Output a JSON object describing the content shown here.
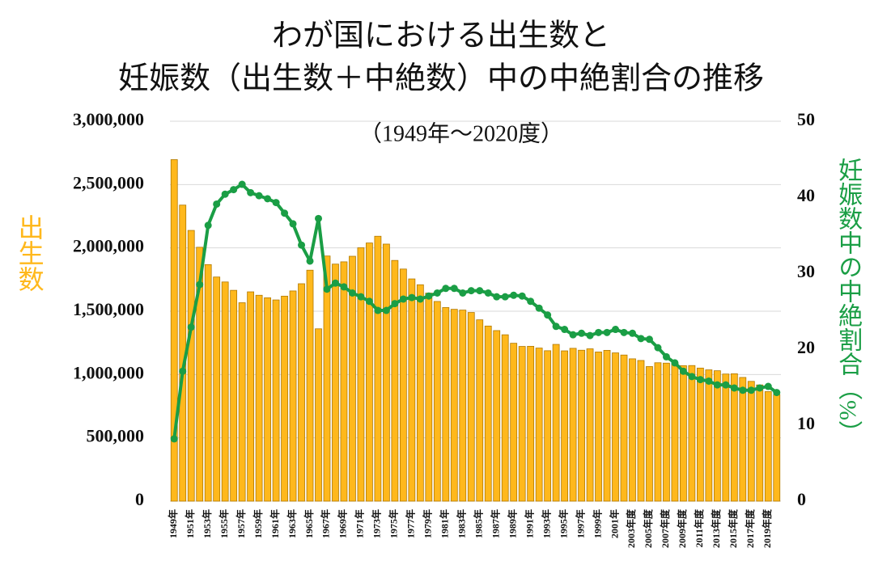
{
  "chart_data": {
    "type": "bar_line",
    "title": [
      "わが国における出生数と",
      "妊娠数（出生数＋中絶数）中の中絶割合の推移"
    ],
    "subtitle": "（1949年～2020度）",
    "y_label": "出生数",
    "y2_label": "妊娠数中の中絶割合（%）",
    "categories": [
      "1949年",
      null,
      "1951年",
      null,
      "1953年",
      null,
      "1955年",
      null,
      "1957年",
      null,
      "1959年",
      null,
      "1961年",
      null,
      "1963年",
      null,
      "1965年",
      null,
      "1967年",
      null,
      "1969年",
      null,
      "1971年",
      null,
      "1973年",
      null,
      "1975年",
      null,
      "1977年",
      null,
      "1979年",
      null,
      "1981年",
      null,
      "1983年",
      null,
      "1985年",
      null,
      "1987年",
      null,
      "1989年",
      null,
      "1991年",
      null,
      "1993年",
      null,
      "1995年",
      null,
      "1997年",
      null,
      "1999年",
      null,
      "2001年",
      null,
      "2003年度",
      null,
      "2005年度",
      null,
      "2007年度",
      null,
      "2009年度",
      null,
      "2011年度",
      null,
      "2013年度",
      null,
      "2015年度",
      null,
      "2017年度",
      null,
      "2019年度",
      null
    ],
    "series": [
      {
        "name": "出生数",
        "color": "#ffb81c",
        "values": [
          2697000,
          2338000,
          2138000,
          2005000,
          1868000,
          1770000,
          1731000,
          1665000,
          1567000,
          1653000,
          1626000,
          1606000,
          1589000,
          1619000,
          1660000,
          1717000,
          1824000,
          1361000,
          1936000,
          1872000,
          1890000,
          1934000,
          2001000,
          2039000,
          2092000,
          2030000,
          1901000,
          1833000,
          1755000,
          1709000,
          1643000,
          1577000,
          1529000,
          1515000,
          1509000,
          1490000,
          1432000,
          1383000,
          1347000,
          1314000,
          1247000,
          1222000,
          1223000,
          1209000,
          1188000,
          1238000,
          1187000,
          1207000,
          1192000,
          1203000,
          1178000,
          1191000,
          1171000,
          1154000,
          1124000,
          1111000,
          1063000,
          1093000,
          1090000,
          1091000,
          1070000,
          1071000,
          1051000,
          1037000,
          1030000,
          1004000,
          1006000,
          977000,
          946000,
          918000,
          865000,
          841000
        ]
      },
      {
        "name": "中絶割合",
        "color": "#1a9e45",
        "axis": "y2",
        "values": [
          8.2,
          17.1,
          22.9,
          28.5,
          36.3,
          39.1,
          40.4,
          41.0,
          41.7,
          40.6,
          40.2,
          39.8,
          39.3,
          37.9,
          36.5,
          33.7,
          31.6,
          37.2,
          27.9,
          28.7,
          28.2,
          27.4,
          26.9,
          26.3,
          25.1,
          25.1,
          26.0,
          26.6,
          26.8,
          26.6,
          27.0,
          27.4,
          28.0,
          28.0,
          27.4,
          27.7,
          27.7,
          27.4,
          26.9,
          26.9,
          27.1,
          27.0,
          26.3,
          25.4,
          24.5,
          23.0,
          22.6,
          21.9,
          22.1,
          21.8,
          22.2,
          22.2,
          22.6,
          22.2,
          22.1,
          21.4,
          21.3,
          20.2,
          19.0,
          18.2,
          17.1,
          16.4,
          16.0,
          15.8,
          15.3,
          15.3,
          14.9,
          14.6,
          14.6,
          14.9,
          15.1,
          14.3
        ]
      }
    ],
    "ylim": [
      0,
      3000000
    ],
    "yticks": [
      0,
      {
        "value": 500000,
        "label": "500,000"
      },
      {
        "value": 1000000,
        "label": "1,000,000"
      },
      {
        "value": 1500000,
        "label": "1,500,000"
      },
      {
        "value": 2000000,
        "label": "2,000,000"
      },
      {
        "value": 2500000,
        "label": "2,500,000"
      },
      {
        "value": 3000000,
        "label": "3,000,000"
      }
    ],
    "y2lim": [
      0,
      50
    ],
    "y2ticks": [
      0,
      10,
      20,
      30,
      40,
      50
    ],
    "grid": true
  }
}
